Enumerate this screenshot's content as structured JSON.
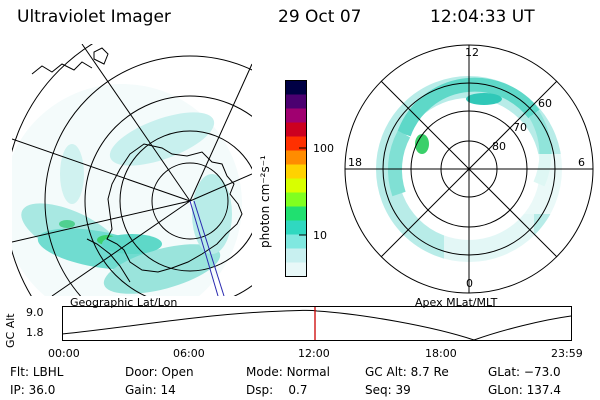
{
  "header": {
    "instrument": "Ultraviolet Imager",
    "date": "29 Oct 07",
    "time": "12:04:33 UT"
  },
  "left_panel": {
    "caption": "Geographic Lat/Lon"
  },
  "colorbar": {
    "unit_label": "photon cm⁻²s⁻¹",
    "ticks": [
      "100",
      "10"
    ],
    "colors": [
      "#000044",
      "#4b0070",
      "#a00070",
      "#cc0020",
      "#ff3000",
      "#ff8c00",
      "#ffd200",
      "#d8ff00",
      "#80ff20",
      "#20e070",
      "#30d8c0",
      "#80e8e0",
      "#c8f0f0",
      "#e8f8f8"
    ]
  },
  "right_panel": {
    "caption": "Apex MLat/MLT",
    "mlt_labels": {
      "top": "12",
      "bottom": "0",
      "left": "18",
      "right": "6"
    },
    "lat_labels": [
      "60",
      "70",
      "80"
    ]
  },
  "orbit": {
    "y_axis_label": "GC Alt",
    "y_ticks": [
      "9.0",
      "1.8"
    ],
    "x_ticks": [
      "00:00",
      "06:00",
      "12:00",
      "18:00",
      "23:59"
    ]
  },
  "status": {
    "row1": [
      {
        "label": "Flt:",
        "value": "LBHL"
      },
      {
        "label": "Door:",
        "value": "Open"
      },
      {
        "label": "Mode:",
        "value": "Normal"
      },
      {
        "label": "GC Alt:",
        "value": "8.7 Re"
      },
      {
        "label": "GLat:",
        "value": "−73.0"
      }
    ],
    "row2": [
      {
        "label": "IP:",
        "value": "36.0"
      },
      {
        "label": "Gain:",
        "value": "14"
      },
      {
        "label": "Dsp:",
        "value": "0.7"
      },
      {
        "label": "Seq:",
        "value": "39"
      },
      {
        "label": "GLon:",
        "value": "137.4"
      }
    ]
  },
  "colors": {
    "aurora_light": "#b8ece8",
    "aurora_mid": "#5ed8c8",
    "aurora_green": "#3ad06a",
    "orbit_marker": "#cc0000",
    "footprint": "#2a2ab0"
  }
}
